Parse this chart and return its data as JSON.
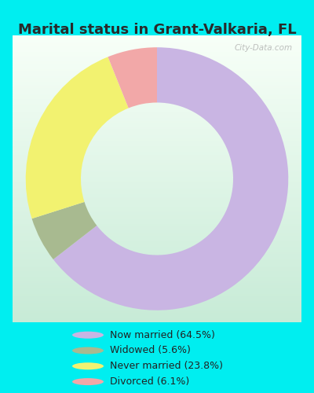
{
  "title": "Marital status in Grant-Valkaria, FL",
  "slices": [
    64.5,
    5.6,
    23.8,
    6.1
  ],
  "labels": [
    "Now married (64.5%)",
    "Widowed (5.6%)",
    "Never married (23.8%)",
    "Divorced (6.1%)"
  ],
  "colors": [
    "#c9b5e3",
    "#a8ba90",
    "#f2f270",
    "#f2a8a8"
  ],
  "legend_colors": [
    "#c9b5e3",
    "#a8ba90",
    "#f2f270",
    "#f2a8a8"
  ],
  "bg_outer": "#00eef0",
  "chart_bg_top": "#f5fff5",
  "chart_bg_bottom": "#c8e8d8",
  "title_fontsize": 13,
  "watermark": "City-Data.com",
  "startangle": 90
}
